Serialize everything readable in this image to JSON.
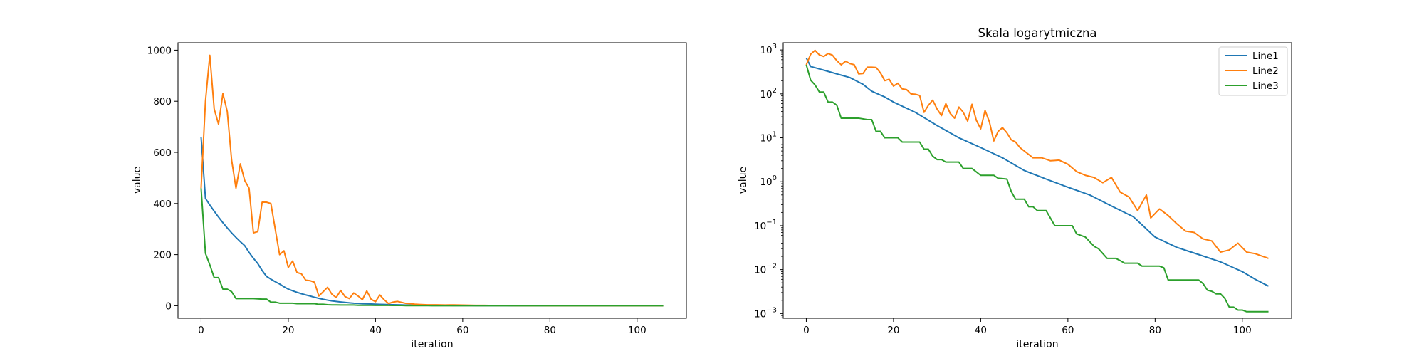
{
  "chart_data": [
    {
      "type": "line",
      "title": "",
      "xlabel": "iteration",
      "ylabel": "value",
      "yscale": "linear",
      "xlim": [
        -5.3,
        111.3
      ],
      "ylim": [
        -49,
        1029
      ],
      "xticks": [
        0,
        20,
        40,
        60,
        80,
        100
      ],
      "yticks": [
        0,
        200,
        400,
        600,
        800,
        1000
      ],
      "grid": false,
      "legend": null,
      "series_ref": "shared"
    },
    {
      "type": "line",
      "title": "Skala logarytmiczna",
      "xlabel": "iteration",
      "ylabel": "value",
      "yscale": "log",
      "xlim": [
        -5.3,
        111.3
      ],
      "ylim": [
        0.00078,
        1460
      ],
      "xticks": [
        0,
        20,
        40,
        60,
        80,
        100
      ],
      "yticks": [
        0.001,
        0.01,
        0.1,
        1,
        10,
        100,
        1000
      ],
      "ytick_labels": [
        [
          "10",
          "−3"
        ],
        [
          "10",
          "−2"
        ],
        [
          "10",
          "−1"
        ],
        [
          "10",
          "0"
        ],
        [
          "10",
          "1"
        ],
        [
          "10",
          "2"
        ],
        [
          "10",
          "3"
        ]
      ],
      "grid": false,
      "legend": "top-right",
      "series_ref": "shared"
    }
  ],
  "x_range": [
    0,
    106
  ],
  "series_colors": [
    "#1f77b4",
    "#ff7f0e",
    "#2ca02c"
  ],
  "series": [
    {
      "name": "Line1",
      "color": "#1f77b4",
      "keypoints": [
        [
          0,
          660
        ],
        [
          1,
          420
        ],
        [
          3,
          370
        ],
        [
          5,
          325
        ],
        [
          7,
          285
        ],
        [
          10,
          235
        ],
        [
          13,
          165
        ],
        [
          15,
          115
        ],
        [
          18,
          85
        ],
        [
          20,
          65
        ],
        [
          25,
          38
        ],
        [
          30,
          19
        ],
        [
          35,
          10
        ],
        [
          40,
          6
        ],
        [
          45,
          3.5
        ],
        [
          50,
          1.8
        ],
        [
          55,
          1.15
        ],
        [
          60,
          0.75
        ],
        [
          65,
          0.5
        ],
        [
          70,
          0.28
        ],
        [
          75,
          0.16
        ],
        [
          80,
          0.055
        ],
        [
          85,
          0.032
        ],
        [
          90,
          0.022
        ],
        [
          95,
          0.015
        ],
        [
          100,
          0.009
        ],
        [
          103,
          0.006
        ],
        [
          106,
          0.0042
        ]
      ]
    },
    {
      "name": "Line2",
      "color": "#ff7f0e",
      "keypoints": [
        [
          0,
          460
        ],
        [
          1,
          800
        ],
        [
          2,
          980
        ],
        [
          3,
          770
        ],
        [
          4,
          710
        ],
        [
          5,
          830
        ],
        [
          6,
          760
        ],
        [
          7,
          570
        ],
        [
          8,
          460
        ],
        [
          9,
          555
        ],
        [
          10,
          490
        ],
        [
          11,
          460
        ],
        [
          12,
          285
        ],
        [
          13,
          290
        ],
        [
          14,
          405
        ],
        [
          15,
          405
        ],
        [
          16,
          400
        ],
        [
          17,
          300
        ],
        [
          18,
          200
        ],
        [
          19,
          215
        ],
        [
          20,
          150
        ],
        [
          21,
          175
        ],
        [
          22,
          130
        ],
        [
          23,
          125
        ],
        [
          24,
          100
        ],
        [
          25,
          98
        ],
        [
          26,
          92
        ],
        [
          27,
          38
        ],
        [
          28,
          55
        ],
        [
          29,
          72
        ],
        [
          30,
          45
        ],
        [
          31,
          32
        ],
        [
          32,
          60
        ],
        [
          33,
          36
        ],
        [
          34,
          28
        ],
        [
          35,
          50
        ],
        [
          36,
          38
        ],
        [
          37,
          24
        ],
        [
          38,
          58
        ],
        [
          39,
          25
        ],
        [
          40,
          16
        ],
        [
          41,
          42
        ],
        [
          42,
          23
        ],
        [
          43,
          8.5
        ],
        [
          44,
          14
        ],
        [
          45,
          17
        ],
        [
          46,
          13
        ],
        [
          47,
          9
        ],
        [
          48,
          8
        ],
        [
          49,
          6
        ],
        [
          50,
          5
        ],
        [
          52,
          3.5
        ],
        [
          54,
          3.5
        ],
        [
          56,
          3.0
        ],
        [
          58,
          3.1
        ],
        [
          60,
          2.5
        ],
        [
          62,
          1.7
        ],
        [
          64,
          1.4
        ],
        [
          66,
          1.25
        ],
        [
          68,
          0.95
        ],
        [
          70,
          1.25
        ],
        [
          72,
          0.58
        ],
        [
          74,
          0.45
        ],
        [
          76,
          0.22
        ],
        [
          78,
          0.5
        ],
        [
          79,
          0.15
        ],
        [
          81,
          0.24
        ],
        [
          83,
          0.17
        ],
        [
          85,
          0.11
        ],
        [
          87,
          0.075
        ],
        [
          89,
          0.07
        ],
        [
          91,
          0.05
        ],
        [
          93,
          0.045
        ],
        [
          95,
          0.025
        ],
        [
          97,
          0.028
        ],
        [
          99,
          0.04
        ],
        [
          101,
          0.025
        ],
        [
          103,
          0.023
        ],
        [
          106,
          0.018
        ]
      ]
    },
    {
      "name": "Line3",
      "color": "#2ca02c",
      "keypoints": [
        [
          0,
          460
        ],
        [
          1,
          205
        ],
        [
          2,
          160
        ],
        [
          3,
          110
        ],
        [
          4,
          110
        ],
        [
          5,
          65
        ],
        [
          6,
          65
        ],
        [
          7,
          55
        ],
        [
          8,
          28
        ],
        [
          9,
          28
        ],
        [
          10,
          28
        ],
        [
          11,
          28
        ],
        [
          12,
          28
        ],
        [
          13,
          27
        ],
        [
          14,
          26
        ],
        [
          15,
          26
        ],
        [
          16,
          14
        ],
        [
          17,
          14
        ],
        [
          18,
          10
        ],
        [
          19,
          10
        ],
        [
          20,
          10
        ],
        [
          21,
          10
        ],
        [
          22,
          8
        ],
        [
          24,
          8
        ],
        [
          26,
          8
        ],
        [
          27,
          5.5
        ],
        [
          28,
          5.5
        ],
        [
          29,
          3.8
        ],
        [
          30,
          3.2
        ],
        [
          31,
          3.2
        ],
        [
          32,
          2.8
        ],
        [
          33,
          2.8
        ],
        [
          35,
          2.8
        ],
        [
          36,
          2.0
        ],
        [
          38,
          2.0
        ],
        [
          40,
          1.4
        ],
        [
          43,
          1.4
        ],
        [
          44,
          1.2
        ],
        [
          46,
          1.15
        ],
        [
          47,
          0.6
        ],
        [
          48,
          0.4
        ],
        [
          50,
          0.4
        ],
        [
          51,
          0.27
        ],
        [
          52,
          0.27
        ],
        [
          53,
          0.22
        ],
        [
          55,
          0.22
        ],
        [
          57,
          0.1
        ],
        [
          61,
          0.1
        ],
        [
          62,
          0.065
        ],
        [
          64,
          0.055
        ],
        [
          66,
          0.034
        ],
        [
          67,
          0.03
        ],
        [
          69,
          0.018
        ],
        [
          71,
          0.018
        ],
        [
          72,
          0.016
        ],
        [
          73,
          0.014
        ],
        [
          76,
          0.014
        ],
        [
          77,
          0.012
        ],
        [
          81,
          0.012
        ],
        [
          82,
          0.011
        ],
        [
          83,
          0.0058
        ],
        [
          90,
          0.0058
        ],
        [
          91,
          0.0048
        ],
        [
          92,
          0.0034
        ],
        [
          93,
          0.0032
        ],
        [
          94,
          0.0028
        ],
        [
          95,
          0.0028
        ],
        [
          96,
          0.0022
        ],
        [
          97,
          0.0014
        ],
        [
          98,
          0.0014
        ],
        [
          99,
          0.0012
        ],
        [
          100,
          0.0012
        ],
        [
          101,
          0.0011
        ]
      ]
    }
  ]
}
